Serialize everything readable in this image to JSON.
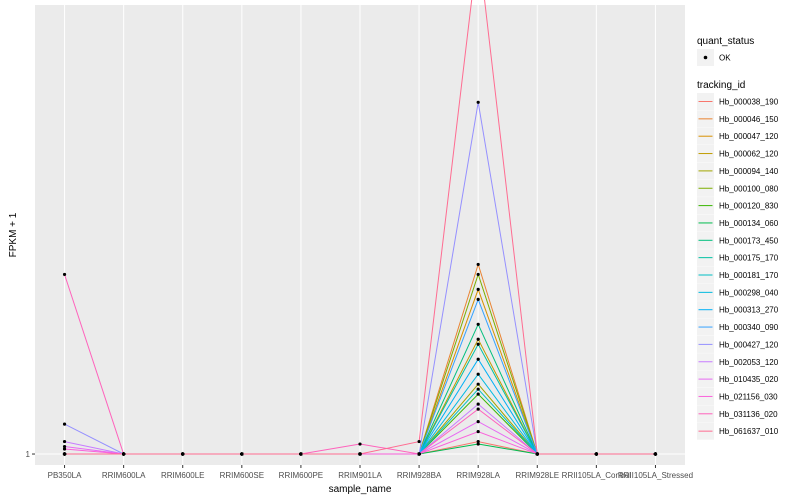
{
  "chart_data": {
    "type": "line",
    "xlabel": "sample_name",
    "ylabel": "FPKM + 1",
    "categories": [
      "PB350LA",
      "RRIM600LA",
      "RRIM600LE",
      "RRIM600SE",
      "RRIM600PE",
      "RRIM901LA",
      "RRIM928BA",
      "RRIM928LA",
      "RRIM928LE",
      "RRII105LA_Control",
      "RRII105LA_Stressed"
    ],
    "y_tick_labels": [
      {
        "value": 1,
        "label": "1"
      }
    ],
    "ylim": [
      0.78,
      10.0
    ],
    "grid": true,
    "legend_position": "right",
    "legend_shape_title": "quant_status",
    "legend_shape_entries": [
      "OK"
    ],
    "legend_title": "tracking_id",
    "series": [
      {
        "name": "Hb_000038_190",
        "color": "#F8766D",
        "values": [
          1,
          1,
          1,
          1,
          1,
          1,
          1,
          1.25,
          1,
          1,
          1
        ]
      },
      {
        "name": "Hb_000046_150",
        "color": "#EA8331",
        "values": [
          1,
          1,
          1,
          1,
          1,
          1,
          1,
          4.8,
          1,
          1,
          1
        ]
      },
      {
        "name": "Hb_000047_120",
        "color": "#D89000",
        "values": [
          1,
          1,
          1,
          1,
          1,
          1,
          1,
          4.3,
          1,
          1,
          1
        ]
      },
      {
        "name": "Hb_000062_120",
        "color": "#C09B00",
        "values": [
          1,
          1,
          1,
          1,
          1,
          1,
          1,
          3.3,
          1,
          1,
          1
        ]
      },
      {
        "name": "Hb_000094_140",
        "color": "#A3A500",
        "values": [
          1,
          1,
          1,
          1,
          1,
          1,
          1,
          2.4,
          1,
          1,
          1
        ]
      },
      {
        "name": "Hb_000100_080",
        "color": "#7CAE00",
        "values": [
          1,
          1,
          1,
          1,
          1,
          1,
          1,
          4.6,
          1,
          1,
          1
        ]
      },
      {
        "name": "Hb_000120_830",
        "color": "#39B600",
        "values": [
          1,
          1,
          1,
          1,
          1,
          1,
          1,
          2.2,
          1,
          1,
          1
        ]
      },
      {
        "name": "Hb_000134_060",
        "color": "#00BB4E",
        "values": [
          1,
          1,
          1,
          1,
          1,
          1,
          1,
          1.2,
          1,
          1,
          1
        ]
      },
      {
        "name": "Hb_000173_450",
        "color": "#00BF7D",
        "values": [
          1,
          1,
          1,
          1,
          1,
          1,
          1,
          3.6,
          1,
          1,
          1
        ]
      },
      {
        "name": "Hb_000175_170",
        "color": "#00C1A3",
        "values": [
          1,
          1,
          1,
          1,
          1,
          1,
          1,
          3.2,
          1,
          1,
          1
        ]
      },
      {
        "name": "Hb_000181_170",
        "color": "#00BFC4",
        "values": [
          1,
          1,
          1,
          1,
          1,
          1,
          1,
          2.3,
          1,
          1,
          1
        ]
      },
      {
        "name": "Hb_000298_040",
        "color": "#00BAE0",
        "values": [
          1,
          1,
          1,
          1,
          1,
          1,
          1,
          2.6,
          1,
          1,
          1
        ]
      },
      {
        "name": "Hb_000313_270",
        "color": "#00B0F6",
        "values": [
          1,
          1,
          1,
          1,
          1,
          1,
          1,
          2.9,
          1,
          1,
          1
        ]
      },
      {
        "name": "Hb_000340_090",
        "color": "#35A2FF",
        "values": [
          1,
          1,
          1,
          1,
          1,
          1,
          1,
          4.1,
          1,
          1,
          1
        ]
      },
      {
        "name": "Hb_000427_120",
        "color": "#9590FF",
        "values": [
          1.6,
          1,
          1,
          1,
          1,
          1,
          1,
          8.05,
          1,
          1,
          1
        ]
      },
      {
        "name": "Hb_002053_120",
        "color": "#C77CFF",
        "values": [
          1.25,
          1,
          1,
          1,
          1,
          1,
          1,
          2.0,
          1,
          1,
          1
        ]
      },
      {
        "name": "Hb_010435_020",
        "color": "#E76BF3",
        "values": [
          1.15,
          1,
          1,
          1,
          1,
          1,
          1,
          1.65,
          1,
          1,
          1
        ]
      },
      {
        "name": "Hb_021156_030",
        "color": "#FA62DB",
        "values": [
          1.1,
          1,
          1,
          1,
          1,
          1,
          1,
          1.45,
          1,
          1,
          1
        ]
      },
      {
        "name": "Hb_031136_020",
        "color": "#FF62BC",
        "values": [
          4.6,
          1,
          1,
          1,
          1,
          1.2,
          1,
          1.9,
          1,
          1,
          1
        ]
      },
      {
        "name": "Hb_061637_010",
        "color": "#FF6C91",
        "values": [
          1,
          1,
          1,
          1,
          1,
          1,
          1.25,
          11.2,
          1,
          1,
          1
        ]
      }
    ]
  }
}
